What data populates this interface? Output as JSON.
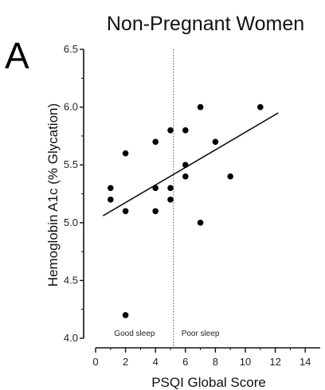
{
  "chart_data": {
    "type": "scatter",
    "panel_label": "A",
    "title": "Non-Pregnant Women",
    "xlabel": "PSQI Global Score",
    "ylabel": "Hemoglobin A1c (% Glycation)",
    "xlim": [
      0,
      15
    ],
    "ylim": [
      4.0,
      6.5
    ],
    "x_ticks": [
      "0",
      "2",
      "4",
      "6",
      "8",
      "10",
      "12",
      "14"
    ],
    "x_tick_values": [
      0,
      2,
      4,
      6,
      8,
      10,
      12,
      14
    ],
    "y_ticks": [
      "4.0",
      "4.5",
      "5.0",
      "5.5",
      "6.0",
      "6.5"
    ],
    "y_tick_values": [
      4.0,
      4.5,
      5.0,
      5.5,
      6.0,
      6.5
    ],
    "points": [
      {
        "x": 1,
        "y": 5.3
      },
      {
        "x": 1,
        "y": 5.2
      },
      {
        "x": 2,
        "y": 5.6
      },
      {
        "x": 2,
        "y": 5.1
      },
      {
        "x": 2,
        "y": 4.2
      },
      {
        "x": 4,
        "y": 5.7
      },
      {
        "x": 4,
        "y": 5.3
      },
      {
        "x": 4,
        "y": 5.1
      },
      {
        "x": 5,
        "y": 5.8
      },
      {
        "x": 5,
        "y": 5.3
      },
      {
        "x": 5,
        "y": 5.2
      },
      {
        "x": 6,
        "y": 5.8
      },
      {
        "x": 6,
        "y": 5.5
      },
      {
        "x": 6,
        "y": 5.4
      },
      {
        "x": 7,
        "y": 6.0
      },
      {
        "x": 7,
        "y": 5.0
      },
      {
        "x": 8,
        "y": 5.7
      },
      {
        "x": 9,
        "y": 5.4
      },
      {
        "x": 11,
        "y": 6.0
      }
    ],
    "regression_line": {
      "x": [
        0.5,
        12.2
      ],
      "y": [
        5.06,
        5.95
      ]
    },
    "cutoff_line": {
      "x": 5.2,
      "style": "dotted"
    },
    "annotations": [
      "Good sleep",
      "Poor sleep"
    ],
    "grid": false,
    "legend": "none"
  }
}
